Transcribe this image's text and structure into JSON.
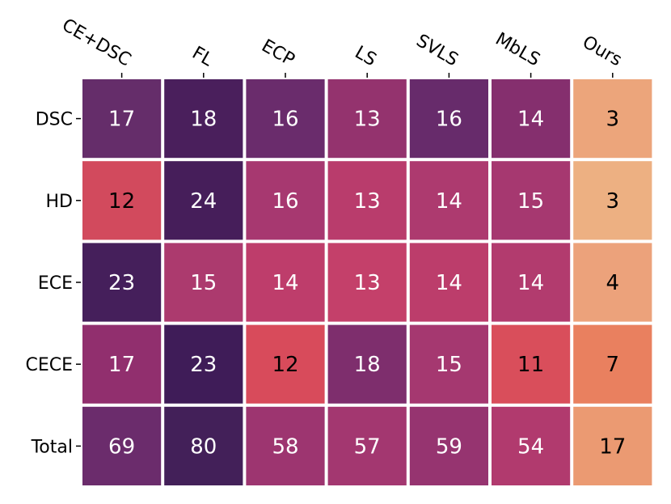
{
  "chart_data": {
    "type": "heatmap",
    "columns": [
      "CE+DSC",
      "FL",
      "ECP",
      "LS",
      "SVLS",
      "MbLS",
      "Ours"
    ],
    "rows": [
      "DSC",
      "HD",
      "ECE",
      "CECE",
      "Total"
    ],
    "values": [
      [
        17,
        18,
        16,
        13,
        16,
        14,
        3
      ],
      [
        12,
        24,
        16,
        13,
        14,
        15,
        3
      ],
      [
        23,
        15,
        14,
        13,
        14,
        14,
        4
      ],
      [
        17,
        23,
        12,
        18,
        15,
        11,
        7
      ],
      [
        69,
        80,
        58,
        57,
        59,
        54,
        17
      ]
    ],
    "cell_colors": [
      [
        "#652d6a",
        "#4a1f5c",
        "#6a2c6c",
        "#94336e",
        "#672b6b",
        "#852f6e",
        "#eca57b"
      ],
      [
        "#d24a5d",
        "#461e5a",
        "#a73870",
        "#b93c6c",
        "#ad3a6f",
        "#a63870",
        "#edb082"
      ],
      [
        "#451f5b",
        "#ac3a6e",
        "#be3d6b",
        "#c4406a",
        "#bc3d6b",
        "#b23b6e",
        "#eca27b"
      ],
      [
        "#912f6e",
        "#3f1c58",
        "#d84b5b",
        "#7e2e6d",
        "#a53870",
        "#d94e5b",
        "#e9805f"
      ],
      [
        "#6b2c6c",
        "#432059",
        "#9d3570",
        "#a33770",
        "#963470",
        "#b13a6e",
        "#eb9a72"
      ]
    ],
    "text_colors": [
      [
        "#ffffff",
        "#ffffff",
        "#ffffff",
        "#ffffff",
        "#ffffff",
        "#ffffff",
        "#000000"
      ],
      [
        "#000000",
        "#ffffff",
        "#ffffff",
        "#ffffff",
        "#ffffff",
        "#ffffff",
        "#000000"
      ],
      [
        "#ffffff",
        "#ffffff",
        "#ffffff",
        "#ffffff",
        "#ffffff",
        "#ffffff",
        "#000000"
      ],
      [
        "#ffffff",
        "#ffffff",
        "#000000",
        "#ffffff",
        "#ffffff",
        "#000000",
        "#000000"
      ],
      [
        "#ffffff",
        "#ffffff",
        "#ffffff",
        "#ffffff",
        "#ffffff",
        "#ffffff",
        "#000000"
      ]
    ],
    "colormap": "flare",
    "grid": false,
    "legend": "none",
    "xlabel": "",
    "ylabel": "",
    "title": ""
  }
}
